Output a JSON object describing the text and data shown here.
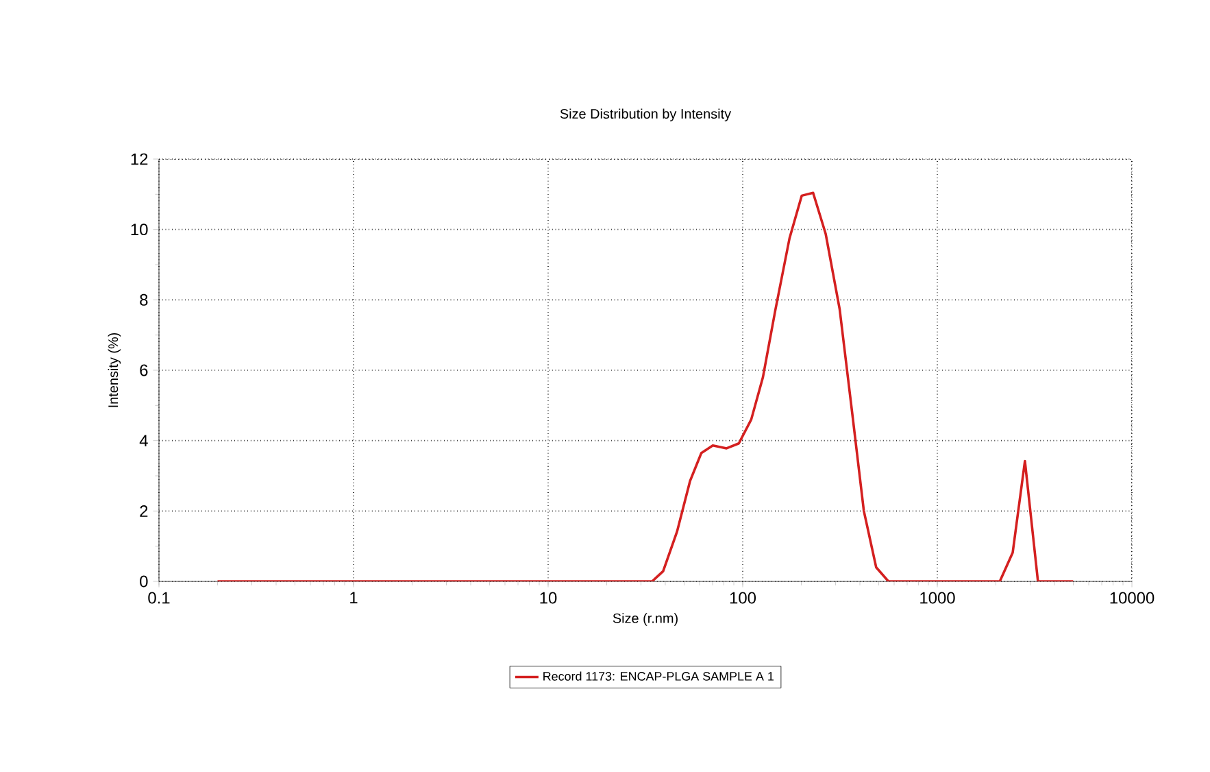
{
  "chart_data": {
    "type": "line",
    "title": "Size Distribution by Intensity",
    "xlabel": "Size (r.nm)",
    "ylabel": "Intensity (%)",
    "log": "x",
    "xlim": [
      0.1,
      10000
    ],
    "xticks": [
      0.1,
      1,
      10,
      100,
      1000,
      10000
    ],
    "ylim": [
      0,
      12
    ],
    "yticks": [
      0,
      2,
      4,
      6,
      8,
      10,
      12
    ],
    "grid": true,
    "legend": "bottom",
    "marker": "none",
    "line_style": "solid",
    "series": [
      {
        "name": "Record 1173: ENCAP-PLGA SAMPLE A 1",
        "color": "#d42020",
        "x": [
          0.2,
          34.2,
          39,
          46,
          53.6,
          61.3,
          70.2,
          82.6,
          95.5,
          110.6,
          127,
          147,
          174,
          201,
          230,
          267,
          315,
          366,
          419,
          485,
          561,
          2095,
          2440,
          2820,
          3290,
          4990
        ],
        "values": [
          0,
          0,
          0.29,
          1.42,
          2.85,
          3.65,
          3.86,
          3.78,
          3.92,
          4.6,
          5.8,
          7.7,
          9.75,
          10.96,
          11.04,
          9.87,
          7.73,
          4.75,
          2.01,
          0.4,
          0,
          0,
          0.82,
          3.42,
          0,
          0
        ]
      }
    ]
  }
}
